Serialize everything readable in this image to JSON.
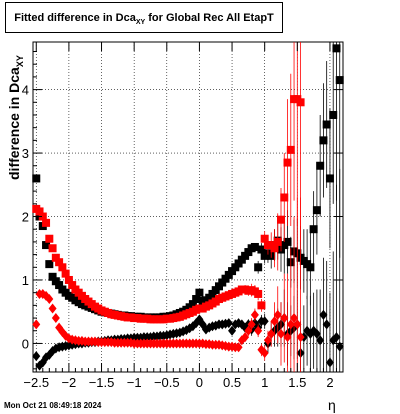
{
  "chart_data": {
    "type": "scatter",
    "title": "Fitted difference in Dca",
    "title_sub": "XY",
    "title_suffix": " for Global Rec All EtapT",
    "ylabel": "difference in Dca",
    "ylabel_sub": "XY",
    "xlabel": "η",
    "xlim": [
      -2.55,
      2.2
    ],
    "ylim": [
      -0.45,
      4.75
    ],
    "xticks": [
      -2.5,
      -2,
      -1.5,
      -1,
      -0.5,
      0,
      0.5,
      1,
      1.5,
      2
    ],
    "xtick_labels": [
      "−2.5",
      "−2",
      "−1.5",
      "−1",
      "−0.5",
      "0",
      "0.5",
      "1",
      "1.5",
      "2"
    ],
    "yticks": [
      0,
      1,
      2,
      3,
      4
    ],
    "ytick_labels": [
      "0",
      "1",
      "2",
      "3",
      "4"
    ],
    "grid": true,
    "colors": {
      "black": "#000000",
      "red": "#ff0000",
      "frame": "#000000"
    },
    "series": [
      {
        "marker": "square",
        "color": "#000000",
        "x": [
          -2.5,
          -2.45,
          -2.4,
          -2.35,
          -2.3,
          -2.25,
          -2.2,
          -2.15,
          -2.1,
          -2.05,
          -2.0,
          -1.95,
          -1.9,
          -1.85,
          -1.8,
          -1.75,
          -1.7,
          -1.65,
          -1.6,
          -1.55,
          -1.5,
          -1.45,
          -1.4,
          -1.35,
          -1.3,
          -1.25,
          -1.2,
          -1.15,
          -1.1,
          -1.05,
          -1.0,
          -0.95,
          -0.9,
          -0.85,
          -0.8,
          -0.75,
          -0.7,
          -0.65,
          -0.6,
          -0.55,
          -0.5,
          -0.45,
          -0.4,
          -0.35,
          -0.3,
          -0.25,
          -0.2,
          -0.15,
          -0.1,
          -0.05,
          0.0,
          0.05,
          0.1,
          0.15,
          0.2,
          0.25,
          0.3,
          0.35,
          0.4,
          0.45,
          0.5,
          0.55,
          0.6,
          0.65,
          0.7,
          0.75,
          0.8,
          0.85,
          0.9,
          0.95,
          1.0,
          1.05,
          1.1,
          1.15,
          1.2,
          1.25,
          1.3,
          1.35,
          1.4,
          1.45,
          1.5,
          1.55,
          1.6,
          1.65,
          1.7,
          1.75,
          1.8,
          1.85,
          1.9,
          1.95,
          2.0,
          2.05,
          2.1,
          2.15
        ],
        "y": [
          2.6,
          2.0,
          1.85,
          1.55,
          1.25,
          1.05,
          0.98,
          0.92,
          0.85,
          0.8,
          0.75,
          0.72,
          0.68,
          0.65,
          0.62,
          0.6,
          0.58,
          0.56,
          0.54,
          0.52,
          0.5,
          0.49,
          0.48,
          0.47,
          0.46,
          0.45,
          0.44,
          0.44,
          0.43,
          0.43,
          0.42,
          0.42,
          0.42,
          0.41,
          0.41,
          0.41,
          0.41,
          0.41,
          0.41,
          0.42,
          0.42,
          0.43,
          0.44,
          0.46,
          0.48,
          0.5,
          0.53,
          0.57,
          0.62,
          0.7,
          0.8,
          0.67,
          0.68,
          0.72,
          0.78,
          0.84,
          0.9,
          0.96,
          1.02,
          1.08,
          1.14,
          1.2,
          1.26,
          1.32,
          1.38,
          1.44,
          1.5,
          1.52,
          1.2,
          1.48,
          1.38,
          1.42,
          1.38,
          1.55,
          1.62,
          1.48,
          1.55,
          1.6,
          1.28,
          1.45,
          1.42,
          1.35,
          1.3,
          1.25,
          1.2,
          1.8,
          2.1,
          2.8,
          3.2,
          3.45,
          2.6,
          3.6,
          4.65,
          4.15
        ],
        "err": [
          0.05,
          0.05,
          0.04,
          0.03,
          0.03,
          0.02,
          0.02,
          0.02,
          0.02,
          0.02,
          0.02,
          0.01,
          0.01,
          0.01,
          0.01,
          0.01,
          0.01,
          0.01,
          0.01,
          0.01,
          0.01,
          0.01,
          0.01,
          0.01,
          0.01,
          0.01,
          0.01,
          0.01,
          0.01,
          0.01,
          0.01,
          0.01,
          0.01,
          0.01,
          0.01,
          0.01,
          0.01,
          0.01,
          0.01,
          0.01,
          0.01,
          0.01,
          0.01,
          0.01,
          0.01,
          0.01,
          0.01,
          0.01,
          0.01,
          0.01,
          0.01,
          0.01,
          0.01,
          0.01,
          0.01,
          0.01,
          0.01,
          0.01,
          0.01,
          0.01,
          0.02,
          0.02,
          0.02,
          0.03,
          0.03,
          0.04,
          0.05,
          0.06,
          0.1,
          0.1,
          0.12,
          0.15,
          0.2,
          0.25,
          0.3,
          0.35,
          0.45,
          0.5,
          0.4,
          0.5,
          0.55,
          0.5,
          0.5,
          0.55,
          0.6,
          0.6,
          0.7,
          0.8,
          0.9,
          1.0,
          1.1,
          1.4,
          2.4,
          2.8
        ]
      },
      {
        "marker": "square",
        "color": "#ff0000",
        "x": [
          -2.5,
          -2.45,
          -2.4,
          -2.35,
          -2.3,
          -2.25,
          -2.2,
          -2.15,
          -2.1,
          -2.05,
          -2.0,
          -1.95,
          -1.9,
          -1.85,
          -1.8,
          -1.75,
          -1.7,
          -1.65,
          -1.6,
          -1.55,
          -1.5,
          -1.45,
          -1.4,
          -1.35,
          -1.3,
          -1.25,
          -1.2,
          -1.15,
          -1.1,
          -1.05,
          -1.0,
          -0.95,
          -0.9,
          -0.85,
          -0.8,
          -0.75,
          -0.7,
          -0.65,
          -0.6,
          -0.55,
          -0.5,
          -0.45,
          -0.4,
          -0.35,
          -0.3,
          -0.25,
          -0.2,
          -0.15,
          -0.1,
          -0.05,
          0.0,
          0.05,
          0.1,
          0.15,
          0.2,
          0.25,
          0.3,
          0.35,
          0.4,
          0.45,
          0.5,
          0.55,
          0.6,
          0.65,
          0.7,
          0.75,
          0.8,
          0.85,
          0.9,
          0.95,
          1.0,
          1.05,
          1.1,
          1.15,
          1.2,
          1.25,
          1.3,
          1.35,
          1.4,
          1.45,
          1.5,
          1.55
        ],
        "y": [
          2.12,
          2.08,
          2.0,
          1.9,
          1.65,
          1.5,
          1.35,
          1.28,
          1.2,
          1.1,
          1.0,
          0.92,
          0.85,
          0.8,
          0.75,
          0.7,
          0.66,
          0.62,
          0.58,
          0.55,
          0.52,
          0.5,
          0.48,
          0.46,
          0.45,
          0.44,
          0.43,
          0.42,
          0.41,
          0.41,
          0.4,
          0.4,
          0.39,
          0.39,
          0.39,
          0.38,
          0.38,
          0.38,
          0.38,
          0.38,
          0.39,
          0.39,
          0.4,
          0.41,
          0.42,
          0.44,
          0.46,
          0.48,
          0.5,
          0.53,
          0.55,
          0.55,
          0.58,
          0.6,
          0.63,
          0.66,
          0.7,
          0.72,
          0.74,
          0.76,
          0.78,
          0.8,
          0.82,
          0.85,
          0.85,
          0.83,
          0.84,
          0.82,
          0.78,
          0.6,
          1.65,
          1.55,
          1.55,
          1.5,
          1.6,
          1.95,
          2.3,
          2.85,
          3.05,
          3.85,
          3.85,
          3.8
        ],
        "err": [
          0.05,
          0.05,
          0.04,
          0.03,
          0.03,
          0.02,
          0.02,
          0.02,
          0.02,
          0.02,
          0.02,
          0.01,
          0.01,
          0.01,
          0.01,
          0.01,
          0.01,
          0.01,
          0.01,
          0.01,
          0.01,
          0.01,
          0.01,
          0.01,
          0.01,
          0.01,
          0.01,
          0.01,
          0.01,
          0.01,
          0.01,
          0.01,
          0.01,
          0.01,
          0.01,
          0.01,
          0.01,
          0.01,
          0.01,
          0.01,
          0.01,
          0.01,
          0.01,
          0.01,
          0.01,
          0.01,
          0.01,
          0.01,
          0.01,
          0.01,
          0.01,
          0.01,
          0.01,
          0.01,
          0.01,
          0.01,
          0.02,
          0.02,
          0.02,
          0.03,
          0.03,
          0.04,
          0.05,
          0.06,
          0.07,
          0.08,
          0.1,
          0.1,
          0.1,
          0.1,
          0.12,
          0.15,
          0.2,
          0.3,
          0.45,
          0.5,
          0.7,
          1.0,
          1.2,
          1.6,
          2.0,
          2.2
        ]
      },
      {
        "marker": "diamond",
        "color": "#000000",
        "x": [
          -2.5,
          -2.45,
          -2.4,
          -2.35,
          -2.3,
          -2.25,
          -2.2,
          -2.15,
          -2.1,
          -2.05,
          -2.0,
          -1.95,
          -1.9,
          -1.85,
          -1.8,
          -1.75,
          -1.7,
          -1.65,
          -1.6,
          -1.55,
          -1.5,
          -1.45,
          -1.4,
          -1.35,
          -1.3,
          -1.25,
          -1.2,
          -1.15,
          -1.1,
          -1.05,
          -1.0,
          -0.95,
          -0.9,
          -0.85,
          -0.8,
          -0.75,
          -0.7,
          -0.65,
          -0.6,
          -0.55,
          -0.5,
          -0.45,
          -0.4,
          -0.35,
          -0.3,
          -0.25,
          -0.2,
          -0.15,
          -0.1,
          -0.05,
          0.0,
          0.05,
          0.1,
          0.15,
          0.2,
          0.25,
          0.3,
          0.35,
          0.4,
          0.45,
          0.5,
          0.55,
          0.6,
          0.65,
          0.7,
          0.75,
          0.8,
          0.85,
          0.9,
          0.95,
          1.0,
          1.05,
          1.1,
          1.15,
          1.2,
          1.25,
          1.3,
          1.35,
          1.4,
          1.45,
          1.5,
          1.55,
          1.6,
          1.65,
          1.7,
          1.75,
          1.8,
          1.85,
          1.9,
          1.95,
          2.0,
          2.05,
          2.1,
          2.15
        ],
        "y": [
          -0.2,
          -0.35,
          -0.3,
          -0.22,
          -0.18,
          -0.12,
          -0.08,
          -0.06,
          -0.05,
          -0.04,
          -0.03,
          -0.02,
          -0.01,
          0.0,
          0.0,
          0.01,
          0.01,
          0.02,
          0.02,
          0.03,
          0.03,
          0.04,
          0.05,
          0.05,
          0.06,
          0.06,
          0.07,
          0.07,
          0.08,
          0.08,
          0.09,
          0.09,
          0.09,
          0.1,
          0.1,
          0.1,
          0.11,
          0.11,
          0.12,
          0.12,
          0.13,
          0.14,
          0.15,
          0.16,
          0.17,
          0.19,
          0.21,
          0.24,
          0.27,
          0.32,
          0.38,
          0.3,
          0.22,
          0.25,
          0.27,
          0.28,
          0.3,
          0.3,
          0.31,
          0.32,
          0.2,
          0.3,
          0.32,
          0.3,
          0.25,
          0.3,
          0.22,
          0.32,
          0.25,
          0.35,
          0.35,
          0.0,
          0.15,
          0.2,
          0.25,
          0.3,
          0.4,
          0.15,
          0.2,
          0.25,
          0.3,
          -0.15,
          0.1,
          0.2,
          0.15,
          0.2,
          0.15,
          0.05,
          0.45,
          0.3,
          -0.3,
          0.05,
          0.1,
          -0.05
        ],
        "err": [
          0.05,
          0.05,
          0.04,
          0.03,
          0.03,
          0.02,
          0.02,
          0.02,
          0.02,
          0.02,
          0.02,
          0.01,
          0.01,
          0.01,
          0.01,
          0.01,
          0.01,
          0.01,
          0.01,
          0.01,
          0.01,
          0.01,
          0.01,
          0.01,
          0.01,
          0.01,
          0.01,
          0.01,
          0.01,
          0.01,
          0.01,
          0.01,
          0.01,
          0.01,
          0.01,
          0.01,
          0.01,
          0.01,
          0.01,
          0.01,
          0.01,
          0.01,
          0.01,
          0.01,
          0.01,
          0.01,
          0.01,
          0.01,
          0.01,
          0.01,
          0.01,
          0.01,
          0.01,
          0.01,
          0.01,
          0.01,
          0.02,
          0.02,
          0.02,
          0.03,
          0.03,
          0.04,
          0.05,
          0.06,
          0.07,
          0.08,
          0.1,
          0.1,
          0.1,
          0.1,
          0.12,
          0.15,
          0.2,
          0.25,
          0.3,
          0.35,
          0.45,
          0.5,
          0.4,
          0.5,
          0.55,
          0.5,
          0.5,
          0.55,
          0.6,
          0.6,
          0.7,
          0.8,
          0.9,
          1.0,
          1.1,
          1.4,
          2.4,
          2.8
        ]
      },
      {
        "marker": "diamond",
        "color": "#ff0000",
        "x": [
          -2.5,
          -2.45,
          -2.4,
          -2.35,
          -2.3,
          -2.25,
          -2.2,
          -2.15,
          -2.1,
          -2.05,
          -2.0,
          -1.95,
          -1.9,
          -1.85,
          -1.8,
          -1.75,
          -1.7,
          -1.65,
          -1.6,
          -1.55,
          -1.5,
          -1.45,
          -1.4,
          -1.35,
          -1.3,
          -1.25,
          -1.2,
          -1.15,
          -1.1,
          -1.05,
          -1.0,
          -0.95,
          -0.9,
          -0.85,
          -0.8,
          -0.75,
          -0.7,
          -0.65,
          -0.6,
          -0.55,
          -0.5,
          -0.45,
          -0.4,
          -0.35,
          -0.3,
          -0.25,
          -0.2,
          -0.15,
          -0.1,
          -0.05,
          0.0,
          0.05,
          0.1,
          0.15,
          0.2,
          0.25,
          0.3,
          0.35,
          0.4,
          0.45,
          0.5,
          0.55,
          0.6,
          0.65,
          0.7,
          0.75,
          0.8,
          0.85,
          0.9,
          0.95,
          1.0,
          1.05,
          1.1,
          1.15,
          1.2,
          1.25,
          1.3,
          1.35,
          1.4,
          1.45,
          1.5,
          1.55
        ],
        "y": [
          0.3,
          0.78,
          0.78,
          0.75,
          0.7,
          0.55,
          0.4,
          0.25,
          0.18,
          0.12,
          0.08,
          0.06,
          0.05,
          0.04,
          0.04,
          0.03,
          0.03,
          0.03,
          0.03,
          0.02,
          0.02,
          0.02,
          0.02,
          0.02,
          0.01,
          0.01,
          0.01,
          0.01,
          0.01,
          0.01,
          0.0,
          0.0,
          0.0,
          0.0,
          0.0,
          0.0,
          0.0,
          0.0,
          0.0,
          0.0,
          0.0,
          0.0,
          0.0,
          0.0,
          0.0,
          0.0,
          0.0,
          0.0,
          0.0,
          0.0,
          0.0,
          0.0,
          -0.01,
          -0.01,
          -0.02,
          -0.02,
          -0.02,
          -0.03,
          -0.04,
          -0.05,
          -0.05,
          -0.06,
          -0.06,
          0.05,
          0.1,
          0.2,
          0.3,
          0.45,
          0.2,
          -0.1,
          -0.15,
          0.05,
          0.15,
          0.35,
          0.45,
          0.15,
          0.4,
          0.1,
          0.3,
          0.4,
          0.3,
          0.1
        ],
        "err": [
          0.05,
          0.05,
          0.04,
          0.03,
          0.03,
          0.02,
          0.02,
          0.02,
          0.02,
          0.02,
          0.02,
          0.01,
          0.01,
          0.01,
          0.01,
          0.01,
          0.01,
          0.01,
          0.01,
          0.01,
          0.01,
          0.01,
          0.01,
          0.01,
          0.01,
          0.01,
          0.01,
          0.01,
          0.01,
          0.01,
          0.01,
          0.01,
          0.01,
          0.01,
          0.01,
          0.01,
          0.01,
          0.01,
          0.01,
          0.01,
          0.01,
          0.01,
          0.01,
          0.01,
          0.01,
          0.01,
          0.01,
          0.01,
          0.01,
          0.01,
          0.01,
          0.01,
          0.01,
          0.01,
          0.01,
          0.01,
          0.02,
          0.02,
          0.02,
          0.03,
          0.03,
          0.04,
          0.05,
          0.06,
          0.07,
          0.08,
          0.1,
          0.1,
          0.1,
          0.1,
          0.12,
          0.15,
          0.2,
          0.3,
          0.45,
          0.5,
          0.7,
          1.0,
          1.2,
          1.6,
          2.0,
          2.2
        ]
      }
    ]
  },
  "footer": {
    "timestamp": "Mon Oct 21 08:49:18 2024"
  }
}
